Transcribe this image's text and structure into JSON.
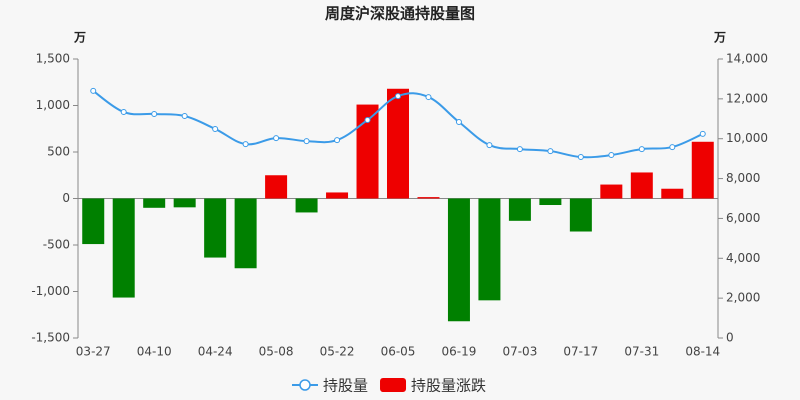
{
  "chart_data": {
    "type": "bar-line",
    "title": "周度沪深股通持股量图",
    "y_unit": "万",
    "y2_unit": "万",
    "categories": [
      "03-27",
      null,
      "04-10",
      null,
      "04-24",
      null,
      "05-08",
      null,
      "05-22",
      null,
      "06-05",
      null,
      "06-19",
      null,
      "07-03",
      null,
      "07-17",
      null,
      "07-31",
      null,
      "08-14"
    ],
    "series": [
      {
        "name": "持股量",
        "type": "line",
        "axis": "y2",
        "color": "#3b9be8",
        "values": [
          12400,
          11340,
          11240,
          11140,
          10490,
          9730,
          10030,
          9880,
          9930,
          10940,
          12140,
          12090,
          10840,
          9680,
          9480,
          9380,
          9080,
          9180,
          9480,
          9580,
          10240
        ]
      },
      {
        "name": "持股量涨跌",
        "type": "bar",
        "axis": "y",
        "color": "#ee0000",
        "negative_color": "#008000",
        "values": [
          -490,
          -1065,
          -100,
          -95,
          -635,
          -750,
          250,
          -150,
          65,
          1010,
          1180,
          15,
          -1320,
          -1095,
          -240,
          -70,
          -355,
          150,
          280,
          105,
          610
        ]
      }
    ],
    "ylim": [
      -1500,
      1500
    ],
    "yticks": [
      {
        "value": -1500,
        "label": "-1,500"
      },
      {
        "value": -1000,
        "label": "-1,000"
      },
      -500,
      0,
      500,
      {
        "value": 1000,
        "label": "1,000"
      },
      {
        "value": 1500,
        "label": "1,500"
      }
    ],
    "y2lim": [
      0,
      14000
    ],
    "y2ticks": [
      0,
      {
        "value": 2000,
        "label": "2,000"
      },
      {
        "value": 4000,
        "label": "4,000"
      },
      {
        "value": 6000,
        "label": "6,000"
      },
      {
        "value": 8000,
        "label": "8,000"
      },
      {
        "value": 10000,
        "label": "10,000"
      },
      {
        "value": 12000,
        "label": "12,000"
      },
      {
        "value": 14000,
        "label": "14,000"
      }
    ],
    "grid": false
  }
}
